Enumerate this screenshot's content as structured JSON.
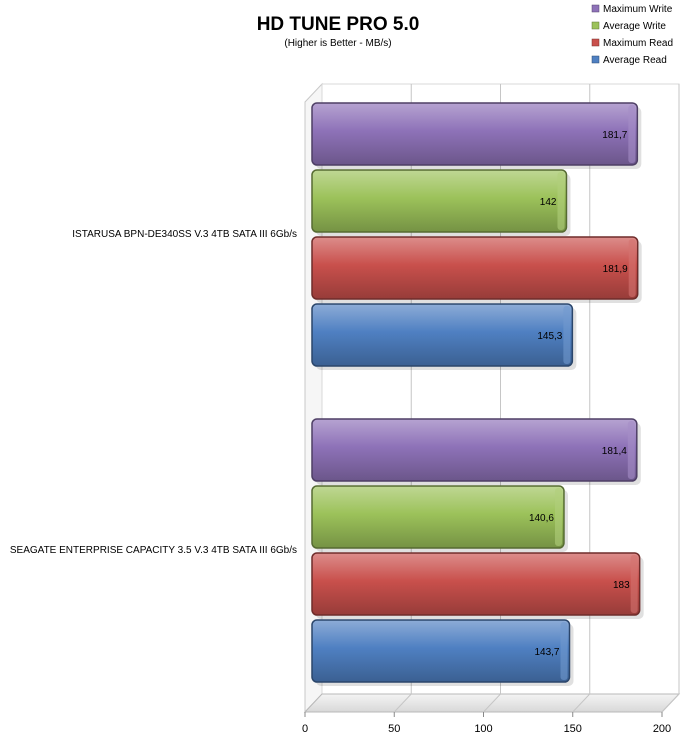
{
  "chart_data": {
    "type": "bar",
    "orientation": "horizontal",
    "title": "HD TUNE PRO 5.0",
    "subtitle": "(Higher is Better - MB/s)",
    "categories": [
      "ISTARUSA BPN-DE340SS V.3 4TB SATA III 6Gb/s",
      "SEAGATE ENTERPRISE CAPACITY 3.5 V.3 4TB SATA III 6Gb/s"
    ],
    "series": [
      {
        "name": "Maximum Write",
        "color": "#8E72B8",
        "values": [
          181.7,
          181.4
        ],
        "labels": [
          "181,7",
          "181,4"
        ]
      },
      {
        "name": "Average Write",
        "color": "#9CC25A",
        "values": [
          142,
          140.6
        ],
        "labels": [
          "142",
          "140,6"
        ]
      },
      {
        "name": "Maximum Read",
        "color": "#C9504C",
        "values": [
          181.9,
          183
        ],
        "labels": [
          "181,9",
          "183"
        ]
      },
      {
        "name": "Average Read",
        "color": "#4F80C2",
        "values": [
          145.3,
          143.7
        ],
        "labels": [
          "145,3",
          "143,7"
        ]
      }
    ],
    "xlim": [
      0,
      200
    ],
    "xticks": [
      0,
      50,
      100,
      150,
      200
    ],
    "grid": true,
    "legend_position": "top-right"
  }
}
